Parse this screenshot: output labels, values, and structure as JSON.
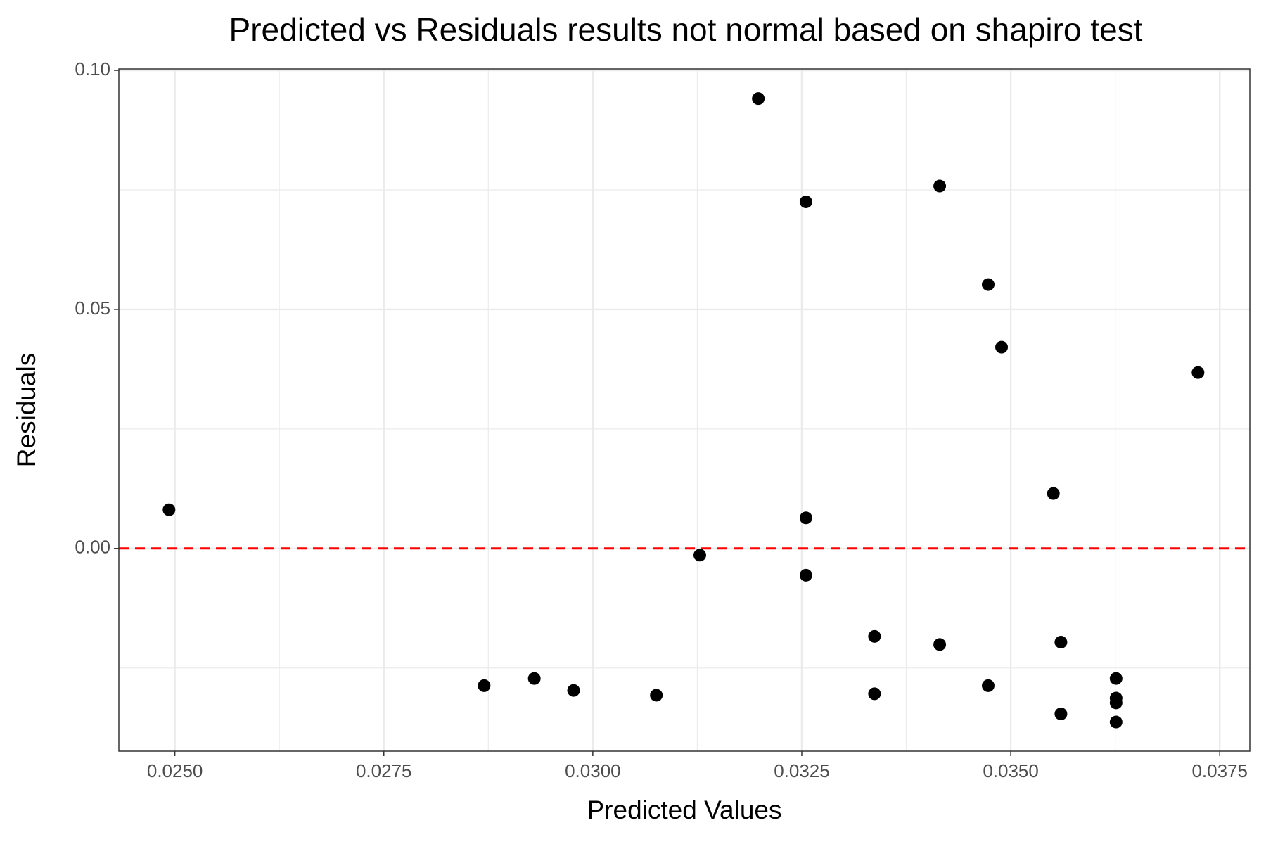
{
  "chart_data": {
    "type": "scatter",
    "title": "Predicted vs Residuals results not normal based on shapiro test",
    "x_label": "Predicted Values",
    "y_label": "Residuals",
    "color": "#000000",
    "x": [
      0.02493,
      0.0287,
      0.0293,
      0.02977,
      0.03076,
      0.03128,
      0.03198,
      0.03255,
      0.03255,
      0.03255,
      0.03337,
      0.03337,
      0.03415,
      0.03415,
      0.03473,
      0.03473,
      0.03489,
      0.03551,
      0.0356,
      0.0356,
      0.03626,
      0.03626,
      0.03626,
      0.03626,
      0.03724
    ],
    "values": [
      0.0081,
      -0.0287,
      -0.0272,
      -0.0297,
      -0.0307,
      -0.0014,
      0.0941,
      0.0725,
      0.0064,
      -0.0056,
      -0.0184,
      -0.0304,
      0.0758,
      -0.0201,
      0.0552,
      -0.0287,
      0.0421,
      0.0115,
      -0.0196,
      -0.0346,
      -0.0272,
      -0.0313,
      -0.0323,
      -0.0363,
      0.0368
    ],
    "xlim": [
      0.02433,
      0.03786
    ],
    "ylim": [
      -0.0424,
      0.1003
    ],
    "xticks": [
      {
        "value": 0.025,
        "label": "0.0250"
      },
      {
        "value": 0.0275,
        "label": "0.0275"
      },
      {
        "value": 0.03,
        "label": "0.0300"
      },
      {
        "value": 0.0325,
        "label": "0.0325"
      },
      {
        "value": 0.035,
        "label": "0.0350"
      },
      {
        "value": 0.0375,
        "label": "0.0375"
      }
    ],
    "yticks": [
      {
        "value": 0,
        "label": "0.00"
      },
      {
        "value": 0.05,
        "label": "0.05"
      },
      {
        "value": 0.1,
        "label": "0.10"
      }
    ],
    "xminor": [
      0.02625,
      0.02875,
      0.03125,
      0.03375,
      0.03625
    ],
    "yminor": [
      -0.025,
      0.025,
      0.075
    ],
    "grid": true,
    "hline": {
      "value": 0,
      "color": "#ff0000",
      "style": "dashed"
    }
  }
}
